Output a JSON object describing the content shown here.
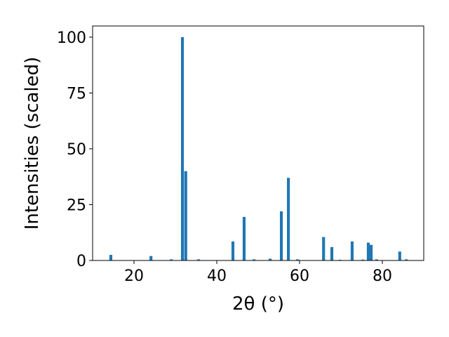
{
  "chart_data": {
    "type": "bar",
    "xlabel": "2θ (°)",
    "ylabel": "Intensities (scaled)",
    "x": [
      14.4,
      24.1,
      29.0,
      31.7,
      32.5,
      35.6,
      43.9,
      46.6,
      49.0,
      52.9,
      55.6,
      57.3,
      59.5,
      65.8,
      67.8,
      69.8,
      72.7,
      75.3,
      76.6,
      77.3,
      78.6,
      84.2,
      85.8
    ],
    "values": [
      2.5,
      2,
      0.5,
      100,
      40,
      0.5,
      8.5,
      19.5,
      0.5,
      0.8,
      22,
      37,
      0.5,
      10.5,
      6,
      0.3,
      8.5,
      0.4,
      8,
      7,
      0.5,
      4,
      0.5
    ],
    "bar_width": 0.7,
    "color": "#1f77b4",
    "xlim": [
      10,
      90
    ],
    "xticks": [
      20,
      40,
      60,
      80
    ],
    "ylim": [
      0,
      105
    ],
    "yticks": [
      0,
      25,
      50,
      75,
      100
    ]
  }
}
